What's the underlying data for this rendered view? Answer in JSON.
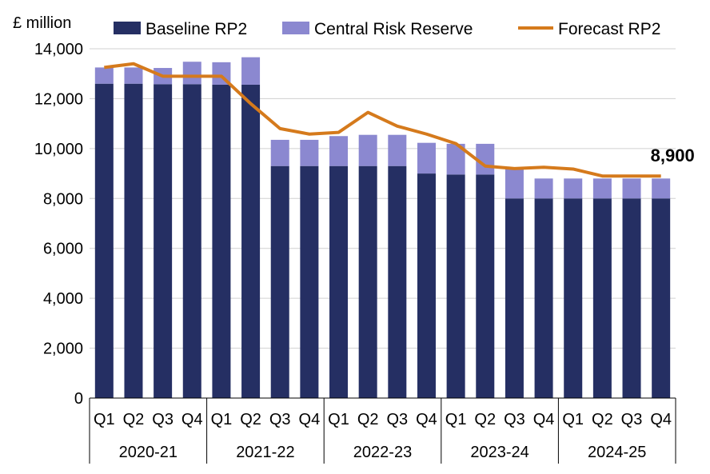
{
  "chart_data": {
    "type": "bar",
    "stacked": true,
    "unit_label": "£ million",
    "title": "",
    "xlabel": "",
    "ylabel": "£ million",
    "ylim": [
      0,
      14000
    ],
    "yticks": [
      0,
      2000,
      4000,
      6000,
      8000,
      10000,
      12000,
      14000
    ],
    "ytick_labels": [
      "0",
      "2,000",
      "4,000",
      "6,000",
      "8,000",
      "10,000",
      "12,000",
      "14,000"
    ],
    "grid": true,
    "legend_position": "top",
    "categories": [
      "Q1",
      "Q2",
      "Q3",
      "Q4",
      "Q1",
      "Q2",
      "Q3",
      "Q4",
      "Q1",
      "Q2",
      "Q3",
      "Q4",
      "Q1",
      "Q2",
      "Q3",
      "Q4",
      "Q1",
      "Q2",
      "Q3",
      "Q4"
    ],
    "year_groups": [
      {
        "label": "2020-21",
        "count": 4
      },
      {
        "label": "2021-22",
        "count": 4
      },
      {
        "label": "2022-23",
        "count": 4
      },
      {
        "label": "2023-24",
        "count": 4
      },
      {
        "label": "2024-25",
        "count": 4
      }
    ],
    "series": [
      {
        "name": "Baseline RP2",
        "kind": "bar",
        "color": "#252f63",
        "values": [
          12600,
          12600,
          12580,
          12580,
          12560,
          12560,
          9300,
          9300,
          9300,
          9300,
          9300,
          9000,
          8960,
          8960,
          8000,
          8000,
          8000,
          8000,
          8000,
          8000
        ]
      },
      {
        "name": "Central Risk Reserve",
        "kind": "bar",
        "color": "#8b88d0",
        "values": [
          650,
          650,
          650,
          900,
          900,
          1100,
          1050,
          1050,
          1200,
          1250,
          1250,
          1230,
          1230,
          1230,
          1200,
          800,
          800,
          800,
          800,
          800
        ]
      },
      {
        "name": "Forecast RP2",
        "kind": "line",
        "color": "#d57a1c",
        "values": [
          13250,
          13400,
          12900,
          12900,
          12900,
          11800,
          10800,
          10580,
          10650,
          11450,
          10900,
          10580,
          10200,
          9300,
          9200,
          9250,
          9180,
          8900,
          8900,
          8900
        ]
      }
    ],
    "annotations": [
      {
        "text": "8,900",
        "series": "Forecast RP2",
        "index": 19
      }
    ]
  }
}
